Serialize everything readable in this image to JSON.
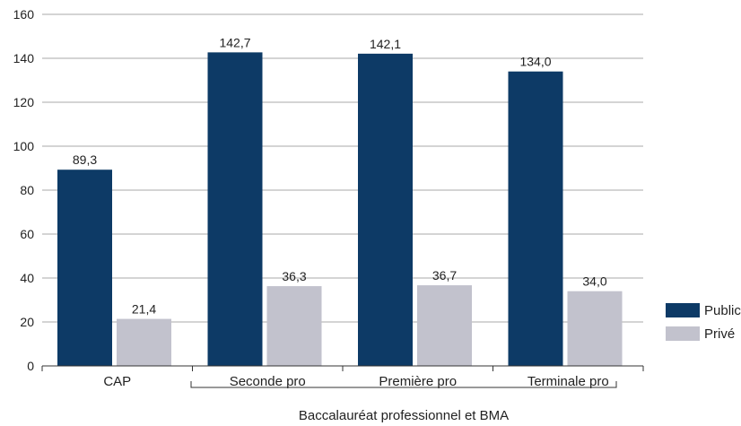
{
  "chart_data": {
    "type": "bar",
    "categories": [
      "CAP",
      "Seconde pro",
      "Première pro",
      "Terminale pro"
    ],
    "series": [
      {
        "name": "Public",
        "values": [
          89.3,
          142.7,
          142.1,
          134.0
        ],
        "labels": [
          "89,3",
          "142,7",
          "142,1",
          "134,0"
        ],
        "color": "#0d3a66"
      },
      {
        "name": "Privé",
        "values": [
          21.4,
          36.3,
          36.7,
          34.0
        ],
        "labels": [
          "21,4",
          "36,3",
          "36,7",
          "34,0"
        ],
        "color": "#c2c2cd"
      }
    ],
    "ylim": [
      0,
      160
    ],
    "yticks": [
      0,
      20,
      40,
      60,
      80,
      100,
      120,
      140,
      160
    ],
    "grid": true,
    "legend_position": "right",
    "group_label": "Baccalauréat professionnel et BMA"
  }
}
